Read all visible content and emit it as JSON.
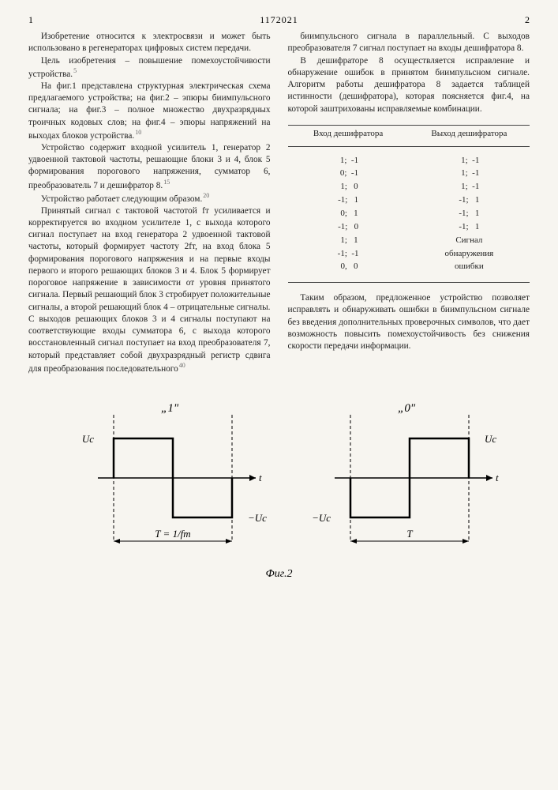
{
  "header": {
    "left_page": "1",
    "doc_number": "1172021",
    "right_page": "2"
  },
  "left_col": {
    "p1": "Изобретение относится к электросвязи и может быть использовано в регенераторах цифровых систем передачи.",
    "p2": "Цель изобретения – повышение помехоустойчивости устройства.",
    "p3": "На фиг.1 представлена структурная электрическая схема предлагаемого устройства; на фиг.2 – эпюры биимпульсного сигнала; на фиг.3 – полное множество двухразрядных троичных кодовых слов; на фиг.4 – эпюры напряжений на выходах блоков устройства.",
    "p4": "Устройство содержит входной усилитель 1, генератор 2 удвоенной тактовой частоты, решающие блоки 3 и 4, блок 5 формирования порогового напряжения, сумматор 6, преобразователь 7 и дешифратор 8.",
    "p5": "Устройство работает следующим образом.",
    "p6": "Принятый сигнал с тактовой частотой fт усиливается и корректируется во входном усилителе 1, с выхода которого сигнал поступает на вход генератора 2 удвоенной тактовой частоты, который формирует частоту 2fт, на вход блока 5 формирования порогового напряжения и на первые входы первого и второго решающих блоков 3 и 4. Блок 5 формирует пороговое напряжение в зависимости от уровня принятого сигнала. Первый решающий блок 3 стробирует положительные сигналы, а второй решающий блок 4 – отрицательные сигналы. С выходов решающих блоков 3 и 4 сигналы поступают на соответствующие входы сумматора 6, с выхода которого восстановленный сигнал поступает на вход преобразователя 7, который представляет собой двухразрядный регистр сдвига для преобразования последовательного"
  },
  "right_col": {
    "p1": "биимпульсного сигнала в параллельный. С выходов преобразователя 7 сигнал поступает на входы дешифратора 8.",
    "p2": "В дешифраторе 8 осуществляется исправление и обнаружение ошибок в принятом биимпульсном сигнале. Алгоритм работы дешифратора 8 задается таблицей истинности (дешифратора), которая поясняется фиг.4, на которой заштрихованы исправляемые комбинации.",
    "table": {
      "head_in": "Вход дешифратора",
      "head_out": "Выход дешифратора",
      "rows": [
        {
          "in": " 1;  -1",
          "out": " 1;  -1"
        },
        {
          "in": " 0;  -1",
          "out": " 1;  -1"
        },
        {
          "in": " 1;   0",
          "out": " 1;  -1"
        },
        {
          "in": "-1;   1",
          "out": "-1;   1"
        },
        {
          "in": " 0;   1",
          "out": "-1;   1"
        },
        {
          "in": "-1;   0",
          "out": "-1;   1"
        },
        {
          "in": " 1;   1",
          "out": "Сигнал"
        },
        {
          "in": "-1;  -1",
          "out": "обнаружения"
        },
        {
          "in": " 0,   0",
          "out": "ошибки"
        }
      ]
    },
    "p3": "Таким образом, предложенное устройство позволяет исправлять и обнаруживать ошибки в биимпульсном сигнале без введения дополнительных проверочных символов, что дает возможность повысить помехоустойчивость без снижения скорости передачи информации."
  },
  "figure": {
    "label": "Фиг.2",
    "left_title": "„1\"",
    "right_title": "„0\"",
    "uc_pos": "Uc",
    "uc_neg": "−Uc",
    "t_axis": "t",
    "T_left": "T = 1/fт",
    "T_right": "T",
    "stroke": "#000000",
    "dash": "4,3"
  },
  "line_markers": [
    "5",
    "10",
    "15",
    "20",
    "25",
    "30",
    "35",
    "40"
  ]
}
